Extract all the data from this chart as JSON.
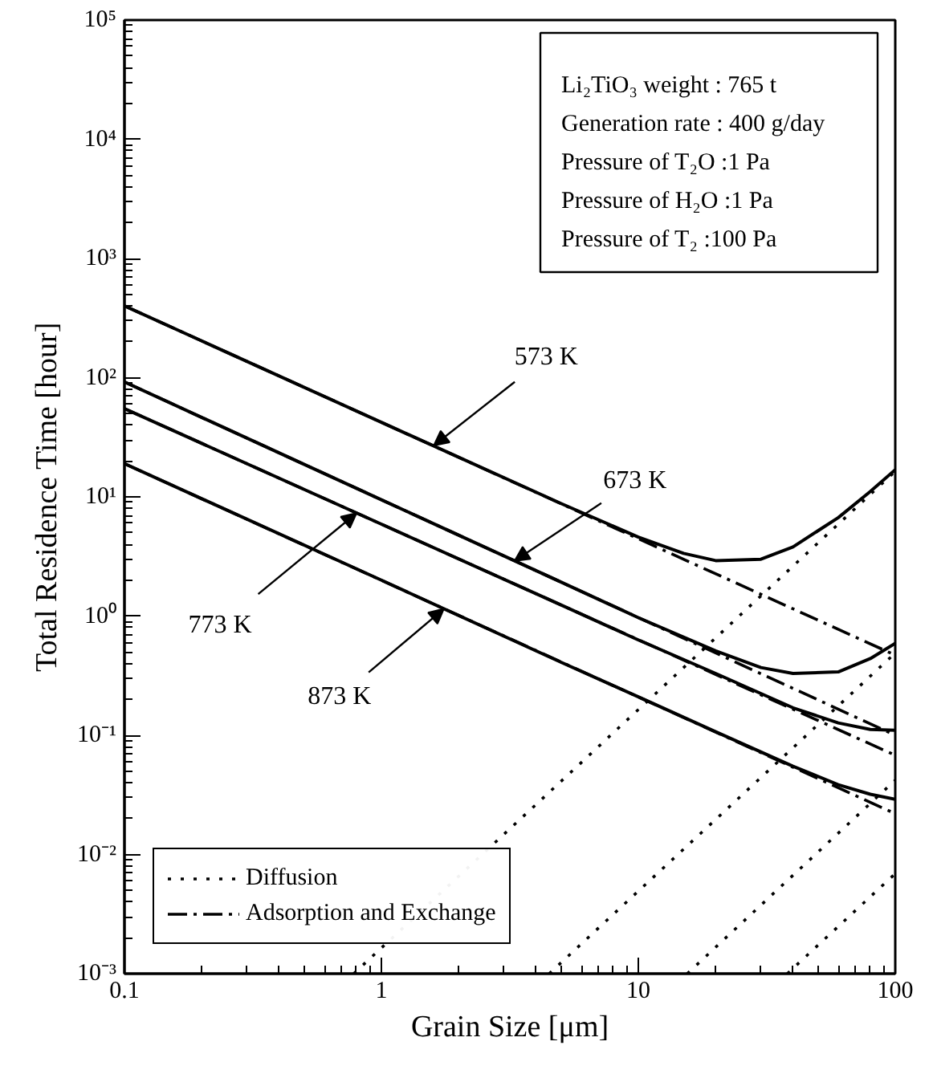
{
  "chart_data": {
    "type": "line",
    "xlabel": "Grain Size [μm]",
    "ylabel": "Total Residence Time [hour]",
    "log": "xy",
    "grid": false,
    "legend": "bottom left",
    "marker": "none",
    "xlim": [
      0.1,
      100
    ],
    "xticks": [
      0.1,
      1,
      10,
      100
    ],
    "ylim": [
      0.001,
      100000
    ],
    "yticks": [
      {
        "value": 0.001,
        "label": "10⁻³"
      },
      {
        "value": 0.01,
        "label": "10⁻²"
      },
      {
        "value": 0.1,
        "label": "10⁻¹"
      },
      {
        "value": 1,
        "label": "10⁰"
      },
      {
        "value": 10,
        "label": "10¹"
      },
      {
        "value": 100,
        "label": "10²"
      },
      {
        "value": 1000,
        "label": "10³"
      },
      {
        "value": 10000,
        "label": "10⁴"
      },
      {
        "value": 100000,
        "label": "10⁵"
      }
    ],
    "series": [
      {
        "color": "#000000",
        "line_style": "solid",
        "x": [
          0.1,
          1,
          5,
          10,
          15,
          20,
          30,
          40,
          60,
          80,
          100
        ],
        "values": [
          400,
          42.2,
          8.8,
          4.6,
          3.36,
          2.92,
          3.0,
          3.8,
          6.7,
          11.1,
          16.9
        ]
      },
      {
        "color": "#000000",
        "line_style": "solid",
        "x": [
          0.1,
          1,
          5,
          10,
          20,
          30,
          40,
          60,
          80,
          100
        ],
        "values": [
          92,
          9.46,
          1.93,
          0.97,
          0.51,
          0.37,
          0.33,
          0.34,
          0.44,
          0.59
        ]
      },
      {
        "color": "#000000",
        "line_style": "solid",
        "x": [
          0.1,
          1,
          5,
          10,
          20,
          40,
          60,
          80,
          100
        ],
        "values": [
          55,
          5.9,
          1.24,
          0.63,
          0.33,
          0.17,
          0.127,
          0.112,
          0.11
        ]
      },
      {
        "color": "#000000",
        "line_style": "solid",
        "x": [
          0.1,
          1,
          5,
          10,
          20,
          40,
          60,
          80,
          100
        ],
        "values": [
          19,
          2.0,
          0.41,
          0.21,
          0.107,
          0.055,
          0.0385,
          0.032,
          0.029
        ]
      },
      {
        "name": "Diffusion",
        "color": "#000000",
        "line_style": "dotted",
        "x": [
          0.78,
          100
        ],
        "values": [
          0.001,
          16.4
        ]
      },
      {
        "color": "#000000",
        "line_style": "dotted",
        "x": [
          4.5,
          100
        ],
        "values": [
          0.001,
          0.49
        ]
      },
      {
        "color": "#000000",
        "line_style": "dotted",
        "x": [
          15.5,
          100
        ],
        "values": [
          0.001,
          0.042
        ]
      },
      {
        "color": "#000000",
        "line_style": "dotted",
        "x": [
          38,
          100
        ],
        "values": [
          0.001,
          0.0069
        ]
      },
      {
        "name": "Adsorption and Exchange",
        "color": "#000000",
        "line_style": "dashdot",
        "x": [
          0.1,
          100
        ],
        "values": [
          400,
          0.47
        ]
      },
      {
        "color": "#000000",
        "line_style": "dashdot",
        "x": [
          0.1,
          100
        ],
        "values": [
          92,
          0.1
        ]
      },
      {
        "color": "#000000",
        "line_style": "dashdot",
        "x": [
          0.1,
          100
        ],
        "values": [
          55,
          0.068
        ]
      },
      {
        "color": "#000000",
        "line_style": "dashdot",
        "x": [
          0.1,
          100
        ],
        "values": [
          19,
          0.022
        ]
      }
    ],
    "annotations": [
      {
        "text": "573 K",
        "x": 1.6,
        "y": 27
      },
      {
        "text": "673 K",
        "x": 3.3,
        "y": 2.9
      },
      {
        "text": "773 K",
        "x": 0.8,
        "y": 7.3
      },
      {
        "text": "873 K",
        "x": 1.75,
        "y": 1.15
      },
      "Li₂TiO₃ weight : 765 t",
      "Generation rate : 400 g/day",
      "Pressure of T₂O  :1 Pa",
      "Pressure of H₂O  :1 Pa",
      "Pressure of T₂  :100 Pa"
    ]
  }
}
